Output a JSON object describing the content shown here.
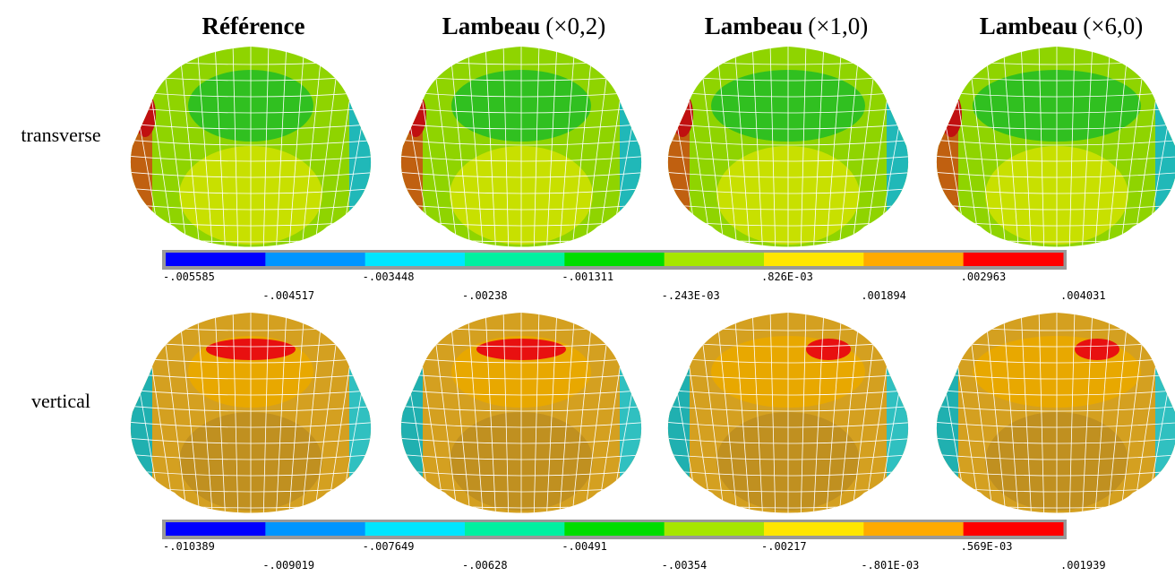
{
  "columns": [
    {
      "name": "Référence"
    },
    {
      "name": "Lambeau",
      "factor": "(×0,2)"
    },
    {
      "name": "Lambeau",
      "factor": "(×1,0)"
    },
    {
      "name": "Lambeau",
      "factor": "(×6,0)"
    }
  ],
  "rows": [
    {
      "label": "transverse",
      "colorbar": {
        "colors": [
          "#0000ff",
          "#0095ff",
          "#00e5ff",
          "#00f0a0",
          "#00dd00",
          "#a6e600",
          "#ffe600",
          "#ffaa00",
          "#ff0000"
        ],
        "labels": [
          "-.005585",
          "-.004517",
          "-.003448",
          "-.00238",
          "-.001311",
          "-.243E-03",
          ".826E-03",
          ".001894",
          ".002963",
          ".004031"
        ]
      }
    },
    {
      "label": "vertical",
      "colorbar": {
        "colors": [
          "#0000ff",
          "#0095ff",
          "#00e5ff",
          "#00f0a0",
          "#00dd00",
          "#a6e600",
          "#ffe600",
          "#ffaa00",
          "#ff0000"
        ],
        "labels": [
          "-.010389",
          "-.009019",
          "-.007649",
          "-.00628",
          "-.00491",
          "-.00354",
          "-.00217",
          "-.801E-03",
          ".569E-03",
          ".001939"
        ]
      }
    }
  ]
}
